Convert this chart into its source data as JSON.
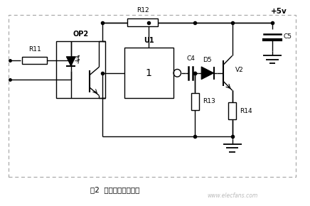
{
  "bg_color": "#ffffff",
  "line_color": "#000000",
  "border_color": "#aaaaaa",
  "fig_width": 4.36,
  "fig_height": 2.9,
  "dpi": 100,
  "labels": {
    "R11": "R11",
    "R12": "R12",
    "R13": "R13",
    "R14": "R14",
    "C4": "C4",
    "C5": "C5",
    "D5": "D5",
    "V2": "V2",
    "U1": "U1",
    "OP2": "OP2",
    "plus5v": "+5v",
    "u1_label": "1",
    "title_text": "图2  同步信号检测电路",
    "watermark": "www.elecfans.com"
  }
}
